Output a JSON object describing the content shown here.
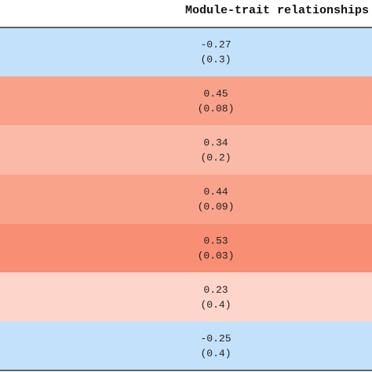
{
  "chart_data": {
    "type": "heatmap",
    "title": "Module-trait relationships",
    "values": [
      -0.27,
      0.45,
      0.34,
      0.44,
      0.53,
      0.23,
      -0.25
    ],
    "pvalues": [
      0.3,
      0.08,
      0.2,
      0.09,
      0.03,
      0.4,
      0.4
    ],
    "pvalue_labels": [
      "(0.3)",
      "(0.08)",
      "(0.2)",
      "(0.09)",
      "(0.03)",
      "(0.4)",
      "(0.4)"
    ],
    "colors": [
      "#c4e1fb",
      "#f9a189",
      "#fbbaa7",
      "#f9a38b",
      "#f88e73",
      "#fdd5ca",
      "#c4e1fb"
    ]
  }
}
